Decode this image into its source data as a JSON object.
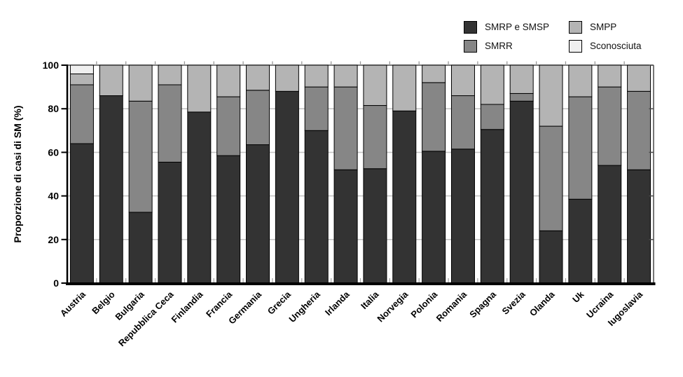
{
  "page": {
    "background": "#ffffff"
  },
  "chart_data": {
    "type": "stacked-bar",
    "title": "",
    "xlabel": "",
    "ylabel": "Proporzione di casi di SM (%)",
    "ylim": [
      0,
      100
    ],
    "yticks": [
      0,
      20,
      40,
      60,
      80,
      100
    ],
    "grid": true,
    "grid_levels": [
      20,
      40,
      60,
      80
    ],
    "legend_position": "top-right",
    "frame": true,
    "categories": [
      "Austria",
      "Belgio",
      "Bulgaria",
      "Repubblica Ceca",
      "Finlandia",
      "Francia",
      "Germania",
      "Grecia",
      "Ungheria",
      "Irlanda",
      "Italia",
      "Norvegia",
      "Polonia",
      "Romania",
      "Spagna",
      "Svezia",
      "Olanda",
      "Uk",
      "Ucraina",
      "Iugoslavia"
    ],
    "series": [
      {
        "name": "SMRP e SMSP",
        "color": "#333333",
        "values": [
          64,
          86,
          32.5,
          55.5,
          78.5,
          58.5,
          63.5,
          88,
          70,
          52,
          52.5,
          79,
          60.5,
          61.5,
          70.5,
          83.5,
          24,
          38.5,
          54,
          52
        ]
      },
      {
        "name": "SMRR",
        "color": "#868686",
        "values": [
          27,
          0,
          51,
          35.5,
          0,
          27,
          25,
          0,
          20,
          38,
          29,
          0,
          31.5,
          24.5,
          11.5,
          3.5,
          48,
          47,
          36,
          36
        ]
      },
      {
        "name": "SMPP",
        "color": "#b4b4b4",
        "values": [
          5,
          14,
          16.5,
          9,
          21.5,
          14.5,
          11.5,
          12,
          10,
          10,
          18.5,
          21,
          8,
          14,
          18,
          13,
          28,
          14.5,
          10,
          12
        ]
      },
      {
        "name": "Sconosciuta",
        "color": "#efefef",
        "values": [
          4,
          0,
          0,
          0,
          0,
          0,
          0,
          0,
          0,
          0,
          0,
          0,
          0,
          0,
          0,
          0,
          0,
          0,
          0,
          0
        ]
      }
    ]
  }
}
